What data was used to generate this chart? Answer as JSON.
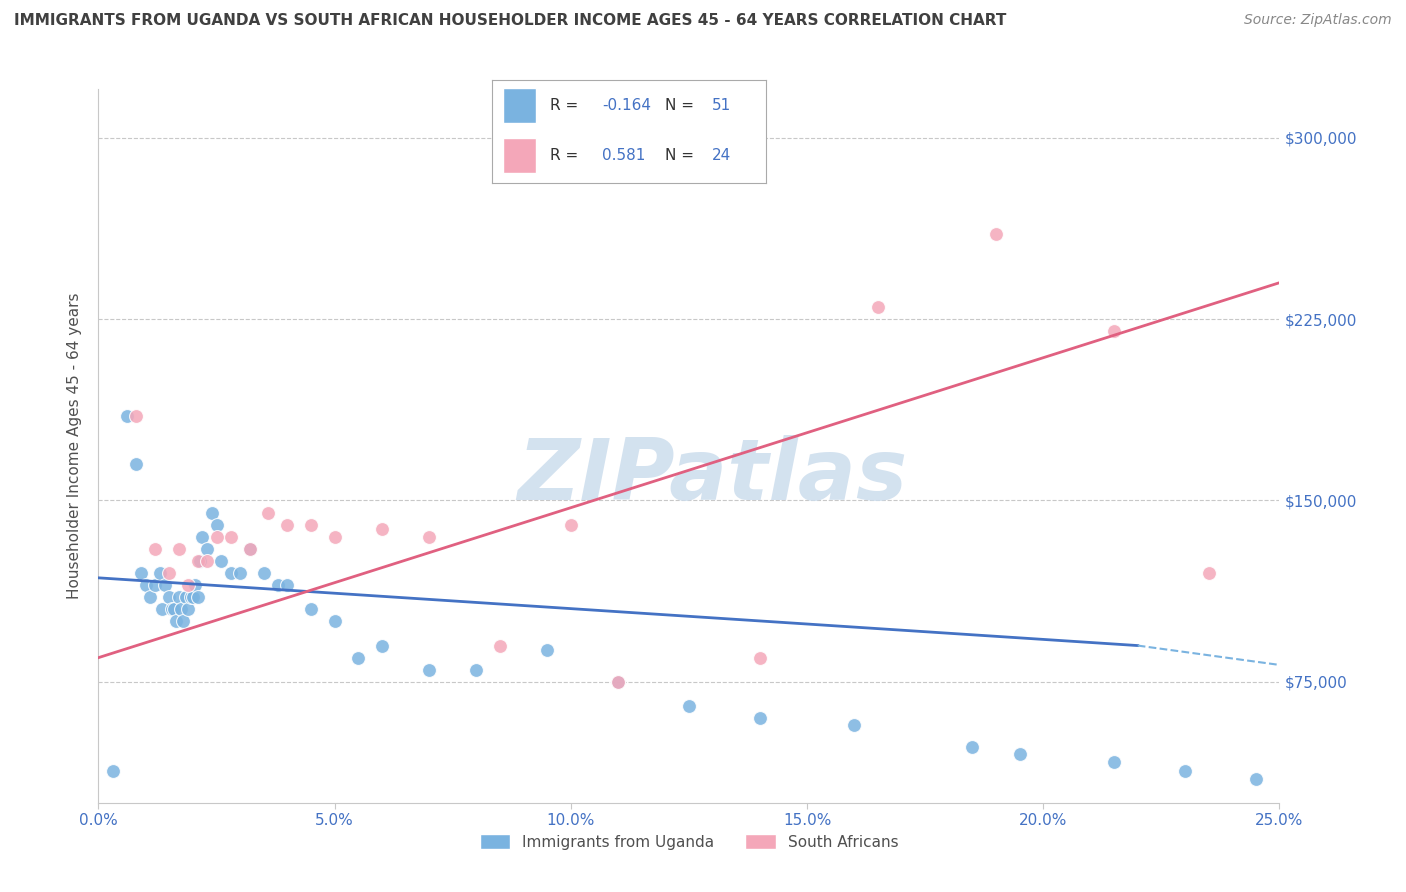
{
  "title": "IMMIGRANTS FROM UGANDA VS SOUTH AFRICAN HOUSEHOLDER INCOME AGES 45 - 64 YEARS CORRELATION CHART",
  "source": "Source: ZipAtlas.com",
  "ylabel": "Householder Income Ages 45 - 64 years",
  "xlabel_ticks": [
    "0.0%",
    "5.0%",
    "10.0%",
    "15.0%",
    "20.0%",
    "25.0%"
  ],
  "xlabel_vals": [
    0.0,
    5.0,
    10.0,
    15.0,
    20.0,
    25.0
  ],
  "ylabel_ticks": [
    "$75,000",
    "$150,000",
    "$225,000",
    "$300,000"
  ],
  "ylabel_vals": [
    75000,
    150000,
    225000,
    300000
  ],
  "xlim": [
    0.0,
    25.0
  ],
  "ylim": [
    25000,
    320000
  ],
  "blue_color": "#7ab3e0",
  "pink_color": "#f4a7b9",
  "blue_line_color": "#4472c4",
  "pink_line_color": "#e06080",
  "watermark": "ZIPatlas",
  "watermark_color": "#ccdded",
  "bg_color": "#ffffff",
  "grid_color": "#c8c8c8",
  "title_color": "#404040",
  "axis_label_color": "#505050",
  "tick_color": "#4472c4",
  "blue_scatter_x": [
    0.3,
    0.6,
    0.8,
    0.9,
    1.0,
    1.1,
    1.2,
    1.3,
    1.35,
    1.4,
    1.5,
    1.55,
    1.6,
    1.65,
    1.7,
    1.75,
    1.8,
    1.85,
    1.9,
    1.95,
    2.0,
    2.05,
    2.1,
    2.15,
    2.2,
    2.3,
    2.4,
    2.5,
    2.6,
    2.8,
    3.0,
    3.2,
    3.5,
    3.8,
    4.0,
    4.5,
    5.0,
    5.5,
    6.0,
    7.0,
    8.0,
    9.5,
    11.0,
    12.5,
    14.0,
    16.0,
    18.5,
    19.5,
    21.5,
    23.0,
    24.5
  ],
  "blue_scatter_y": [
    38000,
    185000,
    165000,
    120000,
    115000,
    110000,
    115000,
    120000,
    105000,
    115000,
    110000,
    105000,
    105000,
    100000,
    110000,
    105000,
    100000,
    110000,
    105000,
    110000,
    110000,
    115000,
    110000,
    125000,
    135000,
    130000,
    145000,
    140000,
    125000,
    120000,
    120000,
    130000,
    120000,
    115000,
    115000,
    105000,
    100000,
    85000,
    90000,
    80000,
    80000,
    88000,
    75000,
    65000,
    60000,
    57000,
    48000,
    45000,
    42000,
    38000,
    35000
  ],
  "pink_scatter_x": [
    0.8,
    1.2,
    1.5,
    1.7,
    1.9,
    2.1,
    2.3,
    2.5,
    2.8,
    3.2,
    3.6,
    4.0,
    4.5,
    5.0,
    6.0,
    7.0,
    8.5,
    10.0,
    11.0,
    14.0,
    16.5,
    19.0,
    21.5,
    23.5
  ],
  "pink_scatter_y": [
    185000,
    130000,
    120000,
    130000,
    115000,
    125000,
    125000,
    135000,
    135000,
    130000,
    145000,
    140000,
    140000,
    135000,
    138000,
    135000,
    90000,
    140000,
    75000,
    85000,
    230000,
    260000,
    220000,
    120000
  ],
  "blue_solid_x0": 0.0,
  "blue_solid_x1": 22.0,
  "blue_solid_y0": 118000,
  "blue_solid_y1": 90000,
  "blue_dashed_x0": 22.0,
  "blue_dashed_x1": 25.0,
  "blue_dashed_y0": 90000,
  "blue_dashed_y1": 82000,
  "pink_x0": 0.0,
  "pink_x1": 25.0,
  "pink_y0": 85000,
  "pink_y1": 240000
}
